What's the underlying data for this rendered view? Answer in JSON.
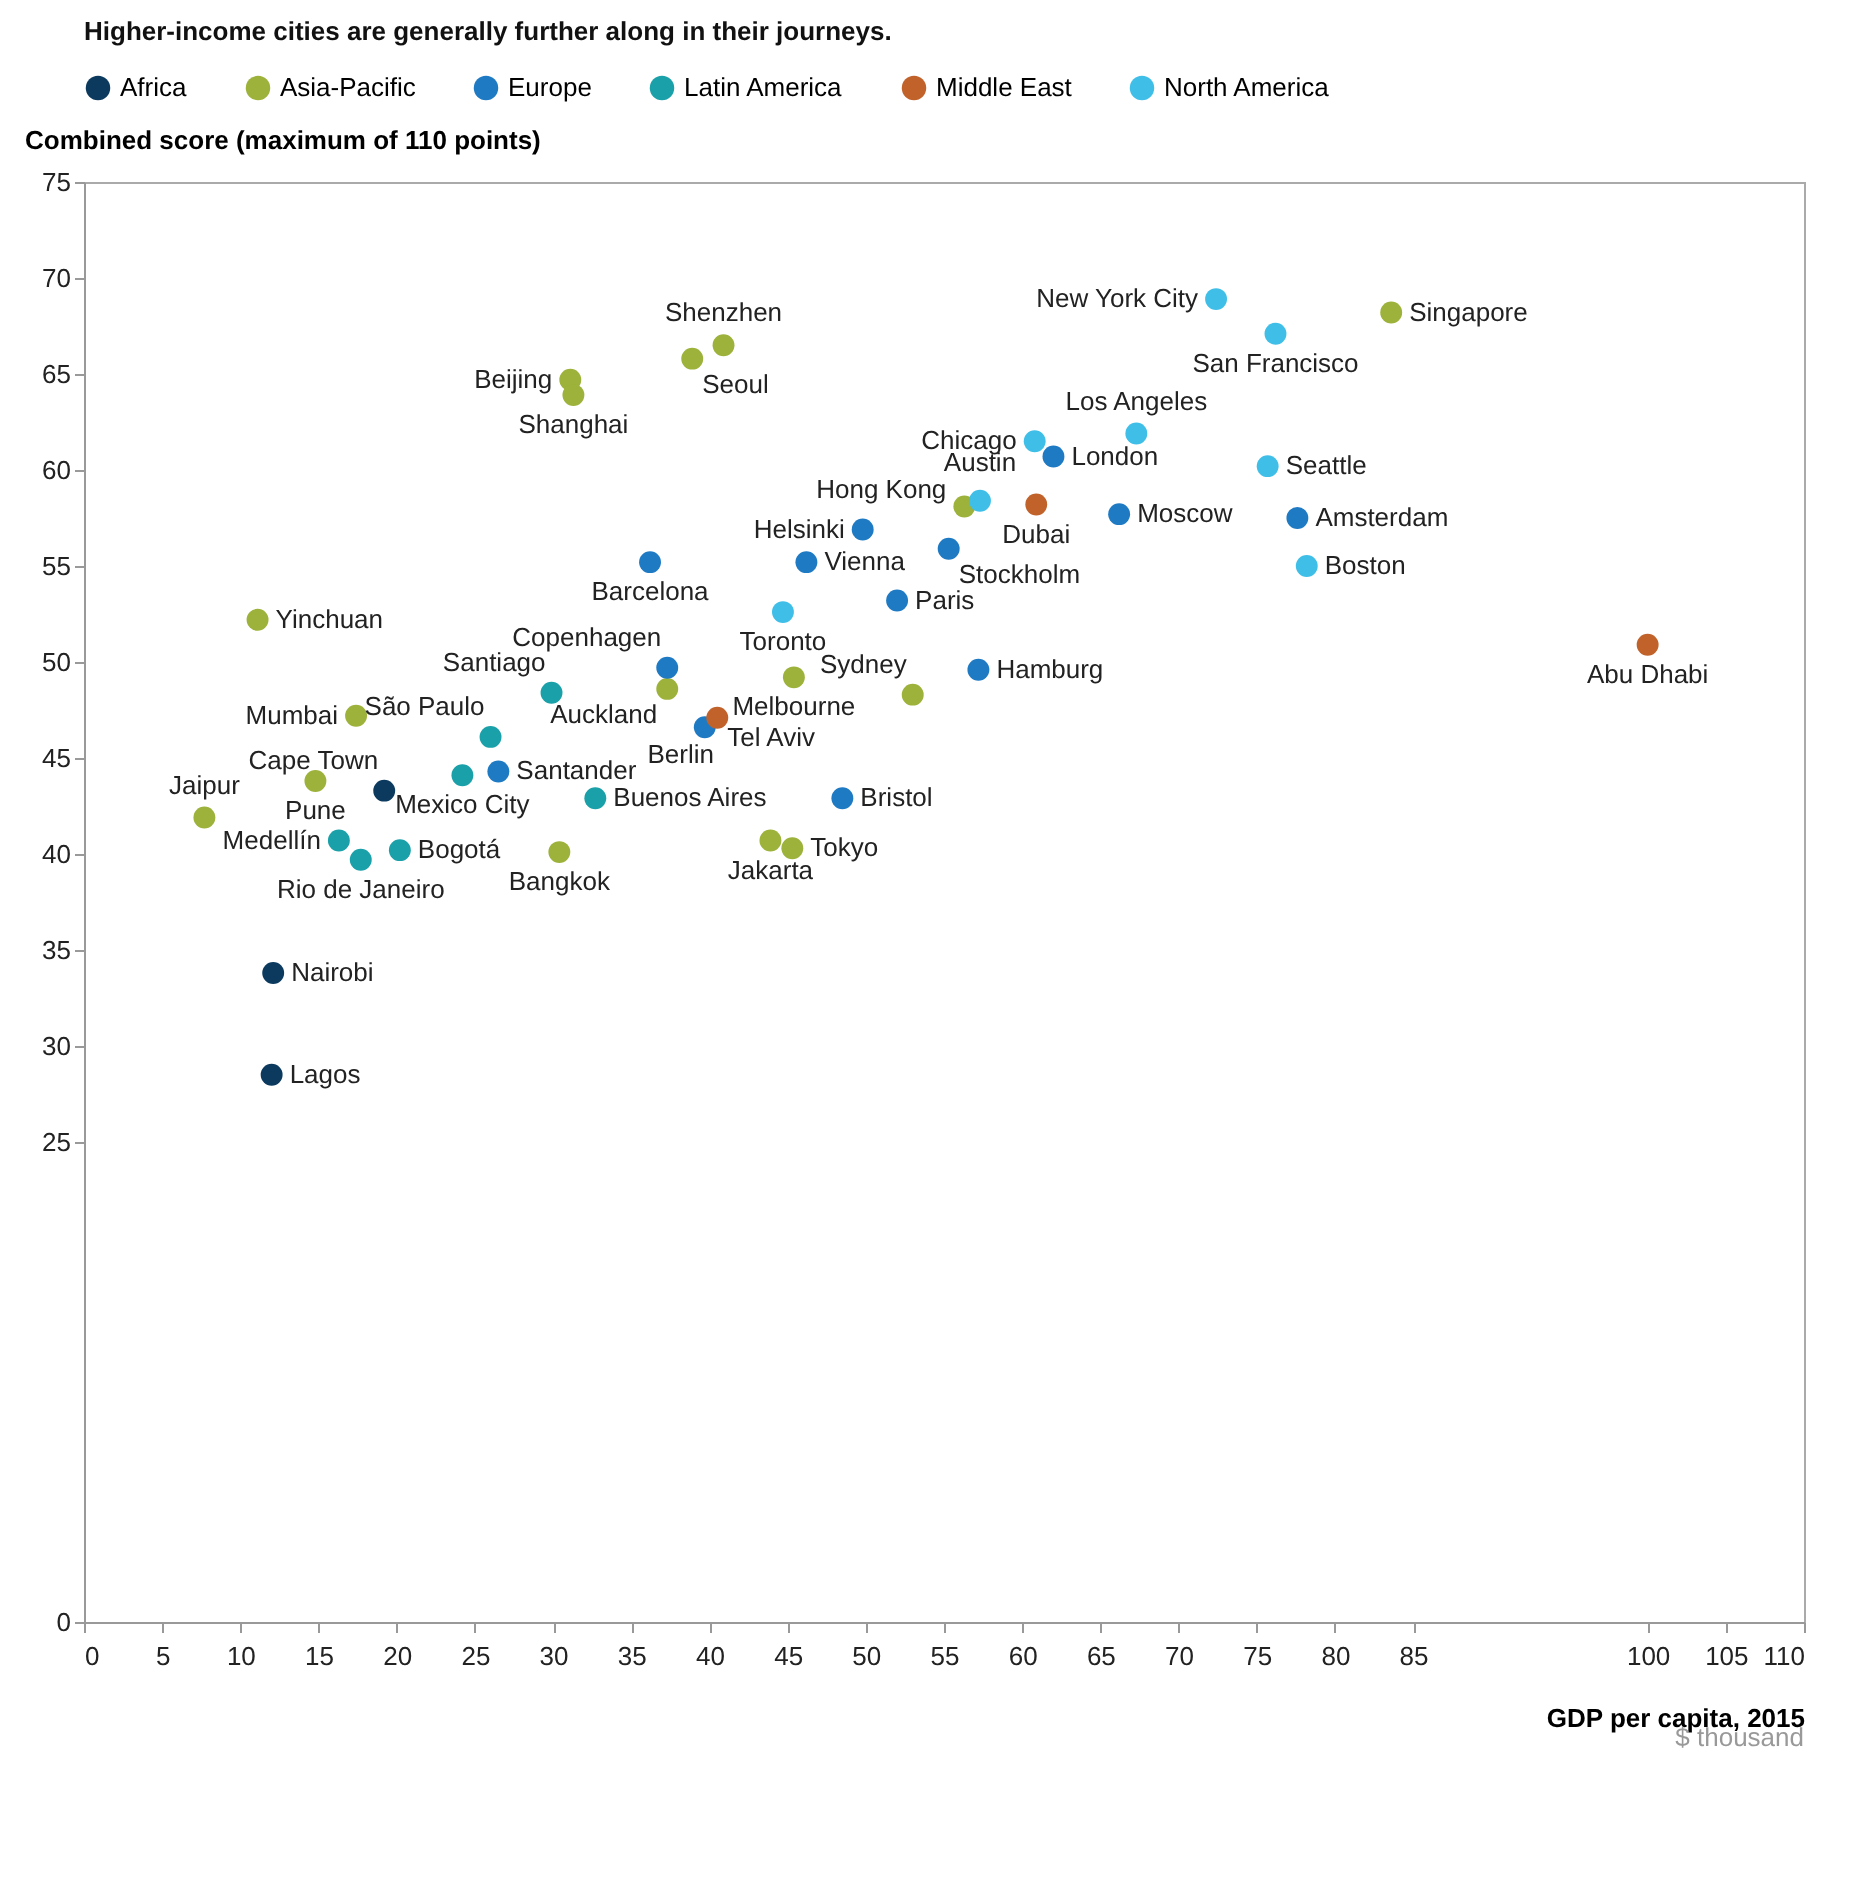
{
  "chart_data": {
    "type": "scatter",
    "title": "Higher-income cities are generally further along in their journeys.",
    "ylabel": "Combined score (maximum of 110 points)",
    "xlabel": "GDP per capita, 2015",
    "xlim": [
      0,
      110
    ],
    "xticks": [
      0,
      5,
      10,
      15,
      20,
      25,
      30,
      35,
      40,
      45,
      50,
      55,
      60,
      65,
      70,
      75,
      80,
      85,
      100,
      105,
      110
    ],
    "ylim": [
      0,
      75
    ],
    "yticks": [
      0,
      25,
      30,
      35,
      40,
      45,
      50,
      55,
      60,
      65,
      70,
      75
    ],
    "grid": false,
    "legend": "top",
    "marker": "circle",
    "series": [
      {
        "name": "Africa",
        "color": "#0b3a5e",
        "x": [
          19.2,
          12.1,
          12.0
        ],
        "values": [
          43.3,
          33.8,
          28.5
        ]
      },
      {
        "name": "Asia-Pacific",
        "color": "#9cb23a",
        "x": [
          40.9,
          38.9,
          31.1,
          31.3,
          83.6,
          56.3,
          11.1,
          45.4,
          37.3,
          53.0,
          17.4,
          14.8,
          7.7,
          30.4,
          43.9,
          45.3
        ],
        "values": [
          66.5,
          65.8,
          64.7,
          63.9,
          68.2,
          58.1,
          52.2,
          49.2,
          48.6,
          48.3,
          47.2,
          43.8,
          41.9,
          40.1,
          40.7,
          40.3
        ]
      },
      {
        "name": "Europe",
        "color": "#1f7ac4",
        "x": [
          62.0,
          49.8,
          36.2,
          46.2,
          55.3,
          66.2,
          77.6,
          52.0,
          37.3,
          57.2,
          39.7,
          26.5,
          48.5
        ],
        "values": [
          60.7,
          56.9,
          55.2,
          55.2,
          55.9,
          57.7,
          57.5,
          53.2,
          49.7,
          49.6,
          46.6,
          44.3,
          42.9
        ]
      },
      {
        "name": "Latin America",
        "color": "#1aa0a8",
        "x": [
          29.9,
          26.0,
          24.2,
          32.7,
          16.3,
          17.7,
          20.2
        ],
        "values": [
          48.4,
          46.1,
          44.1,
          42.9,
          40.7,
          39.7,
          40.2
        ]
      },
      {
        "name": "Middle East",
        "color": "#c0622a",
        "x": [
          60.9,
          100,
          40.5
        ],
        "values": [
          58.2,
          50.9,
          47.1
        ]
      },
      {
        "name": "North America",
        "color": "#3fbfe8",
        "x": [
          72.4,
          76.2,
          67.3,
          60.8,
          57.3,
          75.7,
          78.2,
          44.7
        ],
        "values": [
          68.9,
          67.1,
          61.9,
          61.5,
          58.4,
          60.2,
          55.0,
          52.6
        ]
      }
    ],
    "annotations": [
      {
        "text": "Cape Town",
        "x": 19.2,
        "y": 43.3
      },
      {
        "text": "Nairobi",
        "x": 12.1,
        "y": 33.8
      },
      {
        "text": "Lagos",
        "x": 12.0,
        "y": 28.5
      },
      {
        "text": "Shenzhen",
        "x": 40.9,
        "y": 66.5
      },
      {
        "text": "Seoul",
        "x": 38.9,
        "y": 65.8
      },
      {
        "text": "Beijing",
        "x": 31.1,
        "y": 64.7
      },
      {
        "text": "Shanghai",
        "x": 31.3,
        "y": 63.9
      },
      {
        "text": "Singapore",
        "x": 83.6,
        "y": 68.2
      },
      {
        "text": "Hong Kong",
        "x": 56.3,
        "y": 58.1
      },
      {
        "text": "Yinchuan",
        "x": 11.1,
        "y": 52.2
      },
      {
        "text": "Melbourne",
        "x": 45.4,
        "y": 49.2
      },
      {
        "text": "Auckland",
        "x": 37.3,
        "y": 48.6
      },
      {
        "text": "Sydney",
        "x": 53.0,
        "y": 48.3
      },
      {
        "text": "Mumbai",
        "x": 17.4,
        "y": 47.2
      },
      {
        "text": "Pune",
        "x": 14.8,
        "y": 43.8
      },
      {
        "text": "Jaipur",
        "x": 7.7,
        "y": 41.9
      },
      {
        "text": "Bangkok",
        "x": 30.4,
        "y": 40.1
      },
      {
        "text": "Jakarta",
        "x": 43.9,
        "y": 40.7
      },
      {
        "text": "Tokyo",
        "x": 45.3,
        "y": 40.3
      },
      {
        "text": "London",
        "x": 62.0,
        "y": 60.7
      },
      {
        "text": "Helsinki",
        "x": 49.8,
        "y": 56.9
      },
      {
        "text": "Barcelona",
        "x": 36.2,
        "y": 55.2
      },
      {
        "text": "Vienna",
        "x": 46.2,
        "y": 55.2
      },
      {
        "text": "Stockholm",
        "x": 55.3,
        "y": 55.9
      },
      {
        "text": "Moscow",
        "x": 66.2,
        "y": 57.7
      },
      {
        "text": "Amsterdam",
        "x": 77.6,
        "y": 57.5
      },
      {
        "text": "Paris",
        "x": 52.0,
        "y": 53.2
      },
      {
        "text": "Copenhagen",
        "x": 37.3,
        "y": 49.7
      },
      {
        "text": "Hamburg",
        "x": 57.2,
        "y": 49.6
      },
      {
        "text": "Berlin",
        "x": 39.7,
        "y": 46.6
      },
      {
        "text": "Santander",
        "x": 26.5,
        "y": 44.3
      },
      {
        "text": "Bristol",
        "x": 48.5,
        "y": 42.9
      },
      {
        "text": "Santiago",
        "x": 29.9,
        "y": 48.4
      },
      {
        "text": "São Paulo",
        "x": 26.0,
        "y": 46.1
      },
      {
        "text": "Mexico City",
        "x": 24.2,
        "y": 44.1
      },
      {
        "text": "Buenos Aires",
        "x": 32.7,
        "y": 42.9
      },
      {
        "text": "Medellín",
        "x": 16.3,
        "y": 40.7
      },
      {
        "text": "Rio de Janeiro",
        "x": 17.7,
        "y": 39.7
      },
      {
        "text": "Bogotá",
        "x": 20.2,
        "y": 40.2
      },
      {
        "text": "Dubai",
        "x": 60.9,
        "y": 58.2
      },
      {
        "text": "Abu Dhabi",
        "x": 100,
        "y": 50.9
      },
      {
        "text": "Tel Aviv",
        "x": 40.5,
        "y": 47.1
      },
      {
        "text": "New York City",
        "x": 72.4,
        "y": 68.9
      },
      {
        "text": "San Francisco",
        "x": 76.2,
        "y": 67.1
      },
      {
        "text": "Los Angeles",
        "x": 67.3,
        "y": 61.9
      },
      {
        "text": "Chicago",
        "x": 60.8,
        "y": 61.5
      },
      {
        "text": "Austin",
        "x": 57.3,
        "y": 58.4
      },
      {
        "text": "Seattle",
        "x": 75.7,
        "y": 60.2
      },
      {
        "text": "Boston",
        "x": 78.2,
        "y": 55.0
      },
      {
        "text": "Toronto",
        "x": 44.7,
        "y": 52.6
      },
      "$ thousand"
    ]
  }
}
